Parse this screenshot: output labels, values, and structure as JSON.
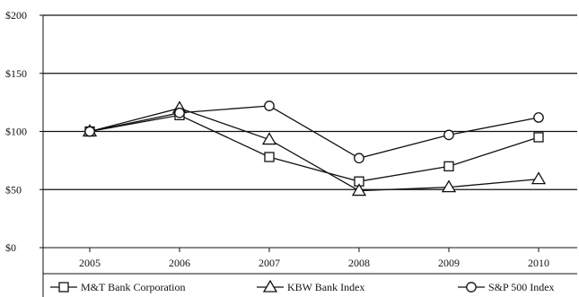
{
  "chart_data": {
    "type": "line",
    "title": "",
    "xlabel": "",
    "ylabel": "",
    "categories": [
      "2005",
      "2006",
      "2007",
      "2008",
      "2009",
      "2010"
    ],
    "ylim": [
      0,
      200
    ],
    "yticks": [
      0,
      50,
      100,
      150,
      200
    ],
    "ytick_labels": [
      "$0",
      "$50",
      "$100",
      "$150",
      "$200"
    ],
    "grid": "horizontal",
    "legend_position": "bottom",
    "line_color": "#111111",
    "series": [
      {
        "name": "M&T Bank Corporation",
        "marker": "square",
        "values": [
          100,
          114,
          78,
          57,
          70,
          95
        ]
      },
      {
        "name": "KBW Bank Index",
        "marker": "triangle",
        "values": [
          100,
          120,
          93,
          49,
          52,
          59
        ]
      },
      {
        "name": "S&P 500 Index",
        "marker": "circle",
        "values": [
          100,
          116,
          122,
          77,
          97,
          112
        ]
      }
    ]
  }
}
